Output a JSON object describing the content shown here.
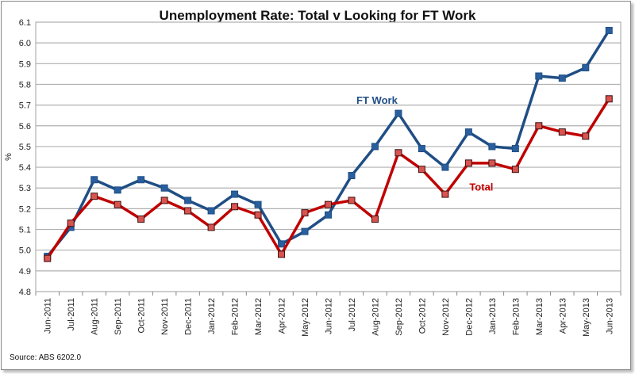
{
  "chart_data": {
    "type": "line",
    "title": "Unemployment Rate: Total v Looking for FT Work",
    "xlabel": "",
    "ylabel": "%",
    "ylim": [
      4.8,
      6.1
    ],
    "yticks": [
      "4.8",
      "4.9",
      "5.0",
      "5.1",
      "5.2",
      "5.3",
      "5.4",
      "5.5",
      "5.6",
      "5.7",
      "5.8",
      "5.9",
      "6.0",
      "6.1"
    ],
    "grid": true,
    "categories": [
      "Jun-2011",
      "Jul-2011",
      "Aug-2011",
      "Sep-2011",
      "Oct-2011",
      "Nov-2011",
      "Dec-2011",
      "Jan-2012",
      "Feb-2012",
      "Mar-2012",
      "Apr-2012",
      "May-2012",
      "Jun-2012",
      "Jul-2012",
      "Aug-2012",
      "Sep-2012",
      "Oct-2012",
      "Nov-2012",
      "Dec-2012",
      "Jan-2013",
      "Feb-2013",
      "Mar-2013",
      "Apr-2013",
      "May-2013",
      "Jun-2013"
    ],
    "series": [
      {
        "name": "FT Work",
        "color": "#1f4e85",
        "marker": "#2a5f9e",
        "values": [
          4.97,
          5.11,
          5.34,
          5.29,
          5.34,
          5.3,
          5.24,
          5.19,
          5.27,
          5.22,
          5.03,
          5.09,
          5.17,
          5.36,
          5.5,
          5.66,
          5.49,
          5.4,
          5.57,
          5.5,
          5.49,
          5.84,
          5.83,
          5.88,
          6.06
        ]
      },
      {
        "name": "Total",
        "color": "#c00000",
        "marker": "#d9534f",
        "values": [
          4.96,
          5.13,
          5.26,
          5.22,
          5.15,
          5.24,
          5.19,
          5.11,
          5.21,
          5.17,
          4.98,
          5.18,
          5.22,
          5.24,
          5.15,
          5.47,
          5.39,
          5.27,
          5.42,
          5.42,
          5.39,
          5.6,
          5.57,
          5.55,
          5.73
        ]
      }
    ],
    "annotations": [
      {
        "text": "FT Work",
        "series": "FT Work",
        "near": "Sep-2012"
      },
      {
        "text": "Total",
        "series": "Total",
        "near": "Dec-2012"
      }
    ],
    "source": "Source: ABS 6202.0"
  }
}
